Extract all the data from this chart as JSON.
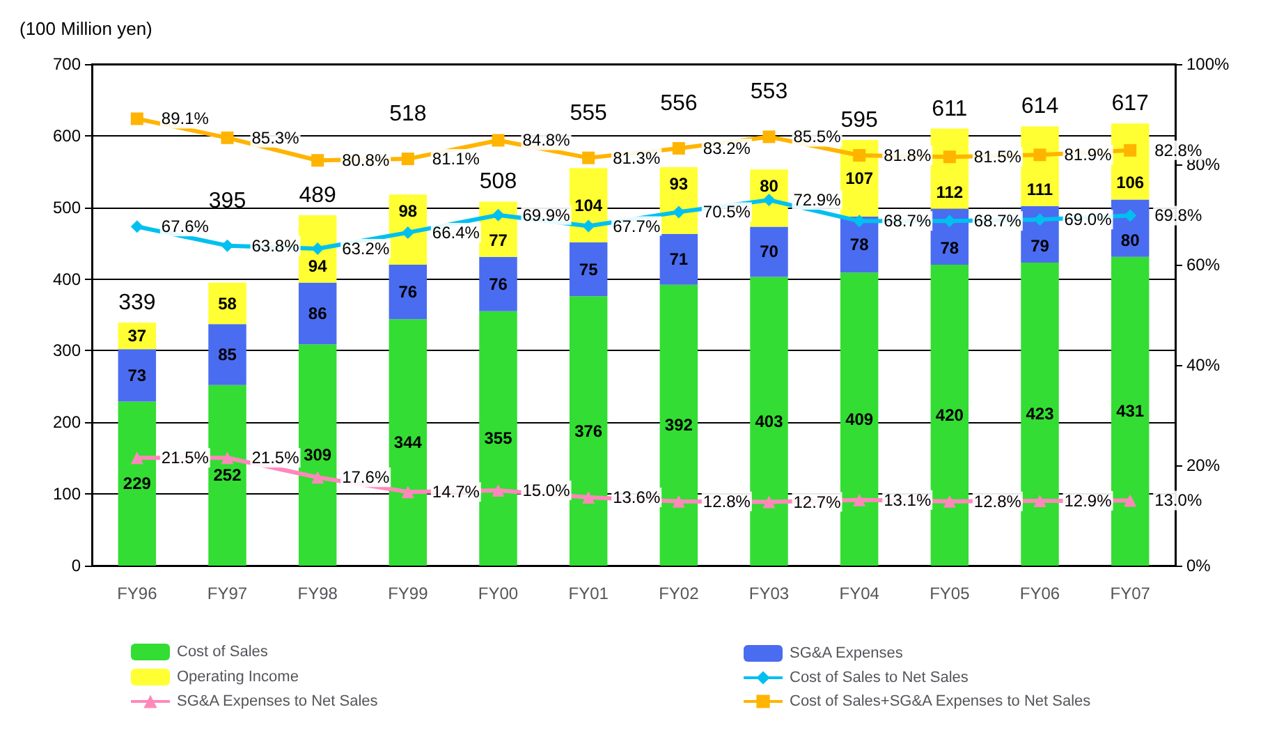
{
  "chart_data": {
    "type": "bar",
    "ylabel": "(100 Million yen)",
    "categories": [
      "FY96",
      "FY97",
      "FY98",
      "FY99",
      "FY00",
      "FY01",
      "FY02",
      "FY03",
      "FY04",
      "FY05",
      "FY06",
      "FY07"
    ],
    "stacked": true,
    "data_labels": true,
    "grid": "y",
    "legend": "bottom",
    "ylim": [
      0,
      700
    ],
    "yticks": [
      0,
      100,
      200,
      300,
      400,
      500,
      600,
      700
    ],
    "y2lim": [
      0,
      100
    ],
    "y2ticks": [
      {
        "value": 0,
        "label": "0%"
      },
      {
        "value": 20,
        "label": "20%"
      },
      {
        "value": 40,
        "label": "40%"
      },
      {
        "value": 60,
        "label": "60%"
      },
      {
        "value": 80,
        "label": "80%"
      },
      {
        "value": 100,
        "label": "100%"
      }
    ],
    "totals": [
      "339",
      "395",
      "489",
      "518",
      "508",
      "555",
      "556",
      "553",
      "595",
      "611",
      "614",
      "617"
    ],
    "series": [
      {
        "name": "Cost of Sales",
        "color": "#33dd33",
        "values": [
          229,
          252,
          309,
          344,
          355,
          376,
          392,
          403,
          409,
          420,
          423,
          431
        ]
      },
      {
        "name": "SG&A Expenses",
        "color": "#4a6cf0",
        "values": [
          73,
          85,
          86,
          76,
          76,
          75,
          71,
          70,
          78,
          78,
          79,
          80
        ]
      },
      {
        "name": "Operating Income",
        "color": "#ffff33",
        "values": [
          37,
          58,
          94,
          98,
          77,
          104,
          93,
          80,
          107,
          112,
          111,
          106
        ]
      },
      {
        "name": "Cost of Sales to Net Sales",
        "type": "line",
        "axis": "y2",
        "marker": "diamond",
        "color": "#00c0f0",
        "values": [
          67.6,
          63.8,
          63.2,
          66.4,
          69.9,
          67.7,
          70.5,
          72.9,
          68.7,
          68.7,
          69.0,
          69.8
        ],
        "value_labels": [
          "67.6%",
          "63.8%",
          "63.2%",
          "66.4%",
          "69.9%",
          "67.7%",
          "70.5%",
          "72.9%",
          "68.7%",
          "68.7%",
          "69.0%",
          "69.8%"
        ]
      },
      {
        "name": "SG&A Expenses to Net Sales",
        "type": "line",
        "axis": "y2",
        "marker": "triangle",
        "color": "#ff88bb",
        "values": [
          21.5,
          21.5,
          17.6,
          14.7,
          15.0,
          13.6,
          12.8,
          12.7,
          13.1,
          12.8,
          12.9,
          13.0
        ],
        "value_labels": [
          "21.5%",
          "21.5%",
          "17.6%",
          "14.7%",
          "15.0%",
          "13.6%",
          "12.8%",
          "12.7%",
          "13.1%",
          "12.8%",
          "12.9%",
          "13.0%"
        ]
      },
      {
        "name": "Cost of Sales+SG&A Expenses to Net Sales",
        "type": "line",
        "axis": "y2",
        "marker": "square",
        "color": "#ffb400",
        "values": [
          89.1,
          85.3,
          80.8,
          81.1,
          84.8,
          81.3,
          83.2,
          85.5,
          81.8,
          81.5,
          81.9,
          82.8
        ],
        "value_labels": [
          "89.1%",
          "85.3%",
          "80.8%",
          "81.1%",
          "84.8%",
          "81.3%",
          "83.2%",
          "85.5%",
          "81.8%",
          "81.5%",
          "81.9%",
          "82.8%"
        ]
      }
    ]
  }
}
